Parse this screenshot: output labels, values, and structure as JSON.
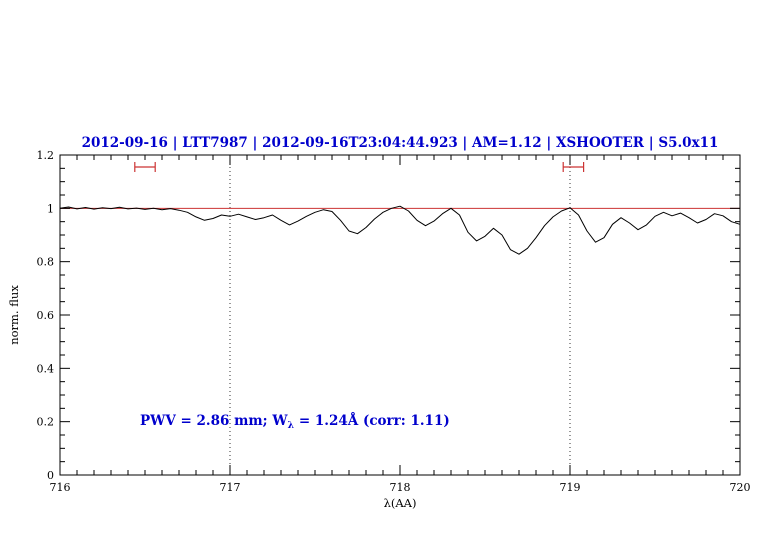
{
  "title": "2012-09-16 | LTT7987 | 2012-09-16T23:04:44.923 | AM=1.12 | XSHOOTER | S5.0x11",
  "colors": {
    "title_blue": "#0000cc",
    "reference_red": "#cc3333",
    "spectrum_black": "#000000"
  },
  "chart_data": {
    "type": "line",
    "title": "2012-09-16 | LTT7987 | 2012-09-16T23:04:44.923 | AM=1.12 | XSHOOTER | S5.0x11",
    "xlabel": "λ(AA)",
    "ylabel": "norm. flux",
    "xlim": [
      716,
      720
    ],
    "ylim": [
      0,
      1.2
    ],
    "grid": "off",
    "x_major_ticks": [
      716,
      717,
      718,
      719,
      720
    ],
    "x_tick_labels": [
      "716",
      "717",
      "718",
      "719",
      "720"
    ],
    "y_major_ticks": [
      0,
      0.2,
      0.4,
      0.6,
      0.8,
      1,
      1.2
    ],
    "y_tick_labels": [
      "0",
      "0.2",
      "0.4",
      "0.6",
      "0.8",
      "1",
      "1.2"
    ],
    "x_minor_step": 0.1,
    "y_minor_step": 0.05,
    "reference_line_y": 1.0,
    "vertical_dotted_lines": [
      717,
      719
    ],
    "range_markers": [
      {
        "x_center": 716.5,
        "half_width": 0.06,
        "y": 1.155
      },
      {
        "x_center": 719.02,
        "half_width": 0.06,
        "y": 1.155
      }
    ],
    "annotation": {
      "part1": "PWV = 2.86 mm; W",
      "sub": "λ",
      "part2": " = 1.24Å (corr: 1.11)"
    },
    "series": [
      {
        "name": "normalized-spectrum",
        "x": [
          716.0,
          716.05,
          716.1,
          716.15,
          716.2,
          716.25,
          716.3,
          716.35,
          716.4,
          716.45,
          716.5,
          716.55,
          716.6,
          716.65,
          716.7,
          716.75,
          716.8,
          716.85,
          716.9,
          716.95,
          717.0,
          717.05,
          717.1,
          717.15,
          717.2,
          717.25,
          717.3,
          717.35,
          717.4,
          717.45,
          717.5,
          717.55,
          717.6,
          717.65,
          717.7,
          717.75,
          717.8,
          717.85,
          717.9,
          717.95,
          718.0,
          718.05,
          718.1,
          718.15,
          718.2,
          718.25,
          718.3,
          718.35,
          718.4,
          718.45,
          718.5,
          718.55,
          718.6,
          718.65,
          718.7,
          718.75,
          718.8,
          718.85,
          718.9,
          718.95,
          719.0,
          719.05,
          719.1,
          719.15,
          719.2,
          719.25,
          719.3,
          719.35,
          719.4,
          719.45,
          719.5,
          719.55,
          719.6,
          719.65,
          719.7,
          719.75,
          719.8,
          719.85,
          719.9,
          719.95,
          720.0
        ],
        "y": [
          1.0,
          1.005,
          0.998,
          1.003,
          0.997,
          1.002,
          0.999,
          1.004,
          0.998,
          1.001,
          0.996,
          1.0,
          0.995,
          0.999,
          0.993,
          0.985,
          0.968,
          0.955,
          0.962,
          0.975,
          0.97,
          0.978,
          0.968,
          0.958,
          0.965,
          0.975,
          0.955,
          0.938,
          0.952,
          0.97,
          0.985,
          0.995,
          0.988,
          0.955,
          0.915,
          0.905,
          0.928,
          0.96,
          0.985,
          1.0,
          1.008,
          0.99,
          0.955,
          0.935,
          0.952,
          0.98,
          1.0,
          0.975,
          0.91,
          0.878,
          0.895,
          0.925,
          0.9,
          0.845,
          0.828,
          0.85,
          0.89,
          0.935,
          0.968,
          0.99,
          1.002,
          0.975,
          0.915,
          0.873,
          0.89,
          0.94,
          0.965,
          0.945,
          0.92,
          0.938,
          0.97,
          0.985,
          0.972,
          0.982,
          0.965,
          0.945,
          0.958,
          0.98,
          0.972,
          0.95,
          0.94
        ]
      }
    ]
  }
}
